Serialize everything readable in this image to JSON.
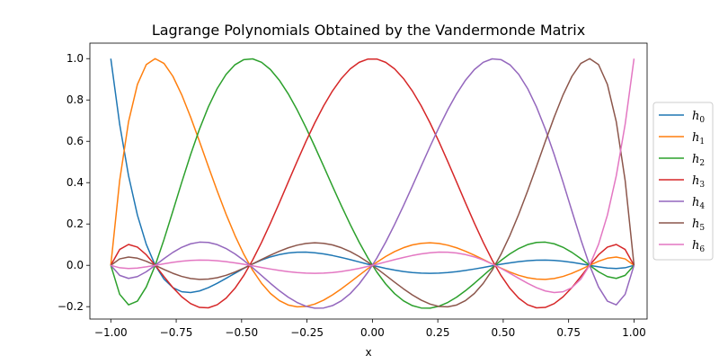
{
  "chart_data": {
    "type": "line",
    "title": "Lagrange Polynomials Obtained by the Vandermonde Matrix",
    "xlabel": "x",
    "ylabel": "",
    "xlim": [
      -1.08,
      1.05
    ],
    "ylim": [
      -0.26,
      1.075
    ],
    "xticks": [
      -1.0,
      -0.75,
      -0.5,
      -0.25,
      0.0,
      0.25,
      0.5,
      0.75,
      1.0
    ],
    "xtick_labels": [
      "−1.00",
      "−0.75",
      "−0.50",
      "−0.25",
      "0.00",
      "0.25",
      "0.50",
      "0.75",
      "1.00"
    ],
    "yticks": [
      -0.2,
      0.0,
      0.2,
      0.4,
      0.6,
      0.8,
      1.0
    ],
    "ytick_labels": [
      "−0.2",
      "0.0",
      "0.2",
      "0.4",
      "0.6",
      "0.8",
      "1.0"
    ],
    "grid": false,
    "legend_position": "outside-right",
    "nodes": [
      -1.0,
      -0.8302,
      -0.4688,
      0.0,
      0.4688,
      0.8302,
      1.0
    ],
    "num_points": 60,
    "series": [
      {
        "name": "h",
        "subscript": "0",
        "color": "#1f77b4",
        "values_at_nodes": [
          1,
          0,
          0,
          0,
          0,
          0,
          0
        ]
      },
      {
        "name": "h",
        "subscript": "1",
        "color": "#ff7f0e",
        "values_at_nodes": [
          0,
          1,
          0,
          0,
          0,
          0,
          0
        ]
      },
      {
        "name": "h",
        "subscript": "2",
        "color": "#2ca02c",
        "values_at_nodes": [
          0,
          0,
          1,
          0,
          0,
          0,
          0
        ]
      },
      {
        "name": "h",
        "subscript": "3",
        "color": "#d62728",
        "values_at_nodes": [
          0,
          0,
          0,
          1,
          0,
          0,
          0
        ]
      },
      {
        "name": "h",
        "subscript": "4",
        "color": "#9467bd",
        "values_at_nodes": [
          0,
          0,
          0,
          0,
          1,
          0,
          0
        ]
      },
      {
        "name": "h",
        "subscript": "5",
        "color": "#8c564b",
        "values_at_nodes": [
          0,
          0,
          0,
          0,
          0,
          1,
          0
        ]
      },
      {
        "name": "h",
        "subscript": "6",
        "color": "#e377c2",
        "values_at_nodes": [
          0,
          0,
          0,
          0,
          0,
          0,
          1
        ]
      }
    ]
  }
}
